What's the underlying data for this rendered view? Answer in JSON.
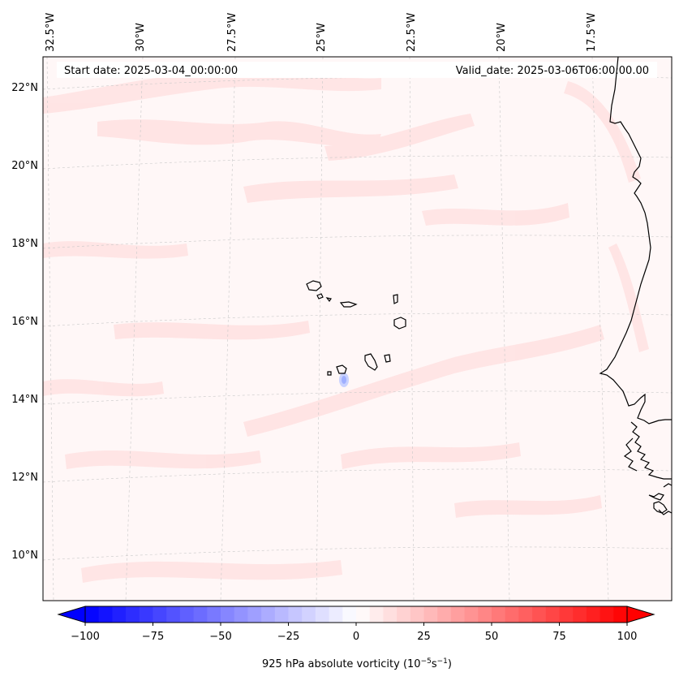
{
  "header": {
    "start_date": "Start date: 2025-03-04_00:00:00",
    "valid_date": "Valid_date: 2025-03-06T06:00:00.00"
  },
  "axes": {
    "lon_labels": [
      "32.5°W",
      "30°W",
      "27.5°W",
      "25°W",
      "22.5°W",
      "20°W",
      "17.5°W"
    ],
    "lat_labels": [
      "22°N",
      "20°N",
      "18°N",
      "16°N",
      "14°N",
      "12°N",
      "10°N"
    ]
  },
  "colorbar": {
    "ticks": [
      "−100",
      "−75",
      "−50",
      "−25",
      "0",
      "25",
      "50",
      "75",
      "100"
    ],
    "label_main": "925 hPa absolute vorticity (10",
    "label_exp1": "−5",
    "label_mid": "s",
    "label_exp2": "−1",
    "label_end": ")",
    "range": [
      -100,
      100
    ],
    "colormap": "bwr",
    "colors": {
      "min": "#0000ff",
      "mid": "#ffffff",
      "max": "#ff0000"
    }
  },
  "map": {
    "projection": "lambert-conformal",
    "lon_range": [
      "33°W",
      "16°W"
    ],
    "lat_range": [
      "9°N",
      "23°N"
    ],
    "gridlines": true,
    "coastline_color": "#000000"
  }
}
